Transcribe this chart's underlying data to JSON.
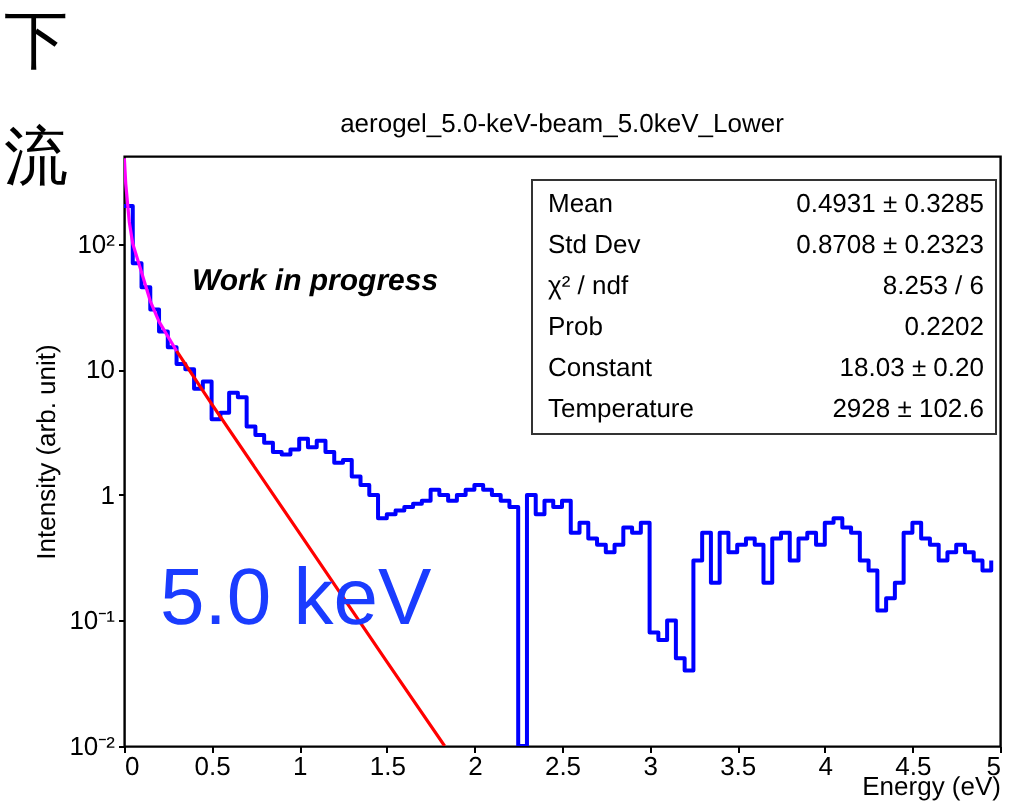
{
  "chart_data": {
    "type": "step",
    "title": "aerogel_5.0-keV-beam_5.0keV_Lower",
    "xlabel": "Energy (eV)",
    "ylabel": "Intensity (arb. unit)",
    "log": "y",
    "grid": false,
    "marker": "none",
    "line_style": "solid",
    "xlim": [
      0,
      5
    ],
    "xticks": [
      0,
      0.5,
      1,
      1.5,
      2,
      2.5,
      3,
      3.5,
      4,
      4.5,
      5
    ],
    "ylim": [
      0.01,
      500
    ],
    "yticks": [
      {
        "value": 0.01,
        "label": "10⁻²"
      },
      {
        "value": 0.1,
        "label": "10⁻¹"
      },
      1,
      10,
      {
        "value": 100,
        "label": "10²"
      }
    ],
    "series": [
      {
        "color": "#0000ff",
        "x": [
          0,
          0.05,
          0.1,
          0.15,
          0.2,
          0.25,
          0.3,
          0.35,
          0.4,
          0.45,
          0.5,
          0.55,
          0.6,
          0.65,
          0.7,
          0.75,
          0.8,
          0.85,
          0.9,
          0.95,
          1.0,
          1.05,
          1.1,
          1.15,
          1.2,
          1.25,
          1.3,
          1.35,
          1.4,
          1.45,
          1.5,
          1.55,
          1.6,
          1.65,
          1.7,
          1.75,
          1.8,
          1.85,
          1.9,
          1.95,
          2.0,
          2.05,
          2.1,
          2.15,
          2.2,
          2.25,
          2.3,
          2.35,
          2.4,
          2.45,
          2.5,
          2.55,
          2.6,
          2.65,
          2.7,
          2.75,
          2.8,
          2.85,
          2.9,
          2.95,
          3.0,
          3.05,
          3.1,
          3.15,
          3.2,
          3.25,
          3.3,
          3.35,
          3.4,
          3.45,
          3.5,
          3.55,
          3.6,
          3.65,
          3.7,
          3.75,
          3.8,
          3.85,
          3.9,
          3.95,
          4.0,
          4.05,
          4.1,
          4.15,
          4.2,
          4.25,
          4.3,
          4.35,
          4.4,
          4.45,
          4.5,
          4.55,
          4.6,
          4.65,
          4.7,
          4.75,
          4.8,
          4.85,
          4.9,
          4.95
        ],
        "values": [
          200,
          70,
          45,
          30,
          20,
          15,
          11,
          10,
          7,
          8,
          4,
          4.5,
          6.5,
          6,
          3.5,
          3,
          2.6,
          2.2,
          2.1,
          2.3,
          2.8,
          2.4,
          2.7,
          2.2,
          1.8,
          1.9,
          1.4,
          1.2,
          1.0,
          0.65,
          0.7,
          0.75,
          0.8,
          0.85,
          0.9,
          1.1,
          1.0,
          0.9,
          1.0,
          1.1,
          1.2,
          1.1,
          1.0,
          0.9,
          0.8,
          0.01,
          1.0,
          0.7,
          0.9,
          0.8,
          0.9,
          0.5,
          0.6,
          0.45,
          0.4,
          0.35,
          0.4,
          0.55,
          0.5,
          0.6,
          0.08,
          0.07,
          0.1,
          0.05,
          0.04,
          0.3,
          0.5,
          0.2,
          0.5,
          0.35,
          0.4,
          0.45,
          0.4,
          0.2,
          0.45,
          0.5,
          0.3,
          0.45,
          0.5,
          0.4,
          0.6,
          0.65,
          0.55,
          0.5,
          0.3,
          0.25,
          0.12,
          0.15,
          0.2,
          0.5,
          0.6,
          0.45,
          0.4,
          0.3,
          0.35,
          0.4,
          0.35,
          0.3,
          0.25,
          0.3
        ]
      },
      {
        "type": "line",
        "color": "#ff0000",
        "x": [
          0.3,
          0.5,
          1.0,
          1.5,
          1.83
        ],
        "values": [
          14,
          5.3,
          0.5,
          0.047,
          0.01
        ]
      },
      {
        "type": "line",
        "color": "#ff00ff",
        "x": [
          0.002,
          0.01,
          0.03,
          0.05,
          0.09,
          0.15,
          0.2,
          0.3
        ],
        "values": [
          480,
          300,
          150,
          100,
          66,
          35,
          24,
          14
        ]
      }
    ],
    "annotations": [
      "下流",
      "Work in progress",
      "5.0 keV",
      "Mean",
      "0.4931 ± 0.3285",
      "Std Dev",
      "0.8708 ± 0.2323",
      "χ² / ndf",
      "8.253 / 6",
      "Prob",
      "0.2202",
      "Constant",
      "18.03 ± 0.20",
      "Temperature",
      "2928 ± 102.6"
    ]
  }
}
